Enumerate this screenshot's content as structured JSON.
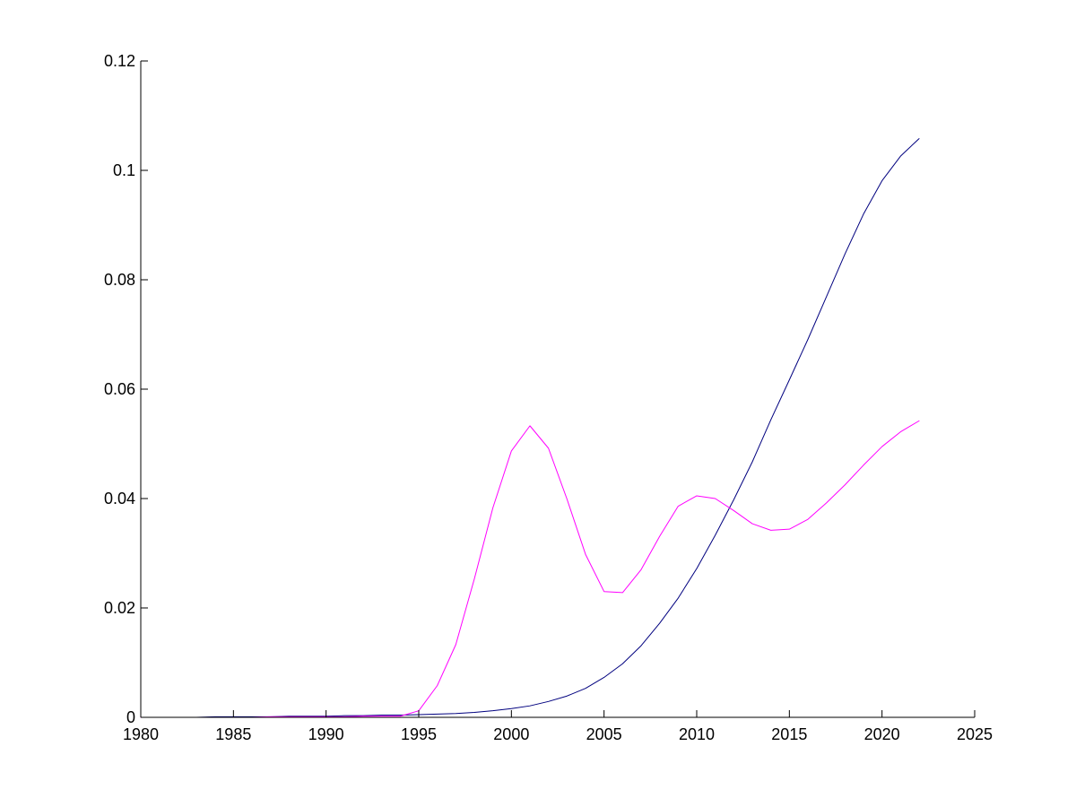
{
  "chart_data": {
    "type": "line",
    "title": "",
    "xlabel": "",
    "ylabel": "",
    "xlim": [
      1980,
      2025
    ],
    "ylim": [
      0,
      0.12
    ],
    "x_ticks": [
      1980,
      1985,
      1990,
      1995,
      2000,
      2005,
      2010,
      2015,
      2020,
      2025
    ],
    "x_tick_labels": [
      "1980",
      "1985",
      "1990",
      "1995",
      "2000",
      "2005",
      "2010",
      "2015",
      "2020",
      "2025"
    ],
    "y_ticks": [
      0,
      0.02,
      0.04,
      0.06,
      0.08,
      0.1,
      0.12
    ],
    "y_tick_labels": [
      "0",
      "0.02",
      "0.04",
      "0.06",
      "0.08",
      "0.1",
      "0.12"
    ],
    "grid": false,
    "legend": "none",
    "x": [
      1980,
      1981,
      1982,
      1983,
      1984,
      1985,
      1986,
      1987,
      1988,
      1989,
      1990,
      1991,
      1992,
      1993,
      1994,
      1995,
      1996,
      1997,
      1998,
      1999,
      2000,
      2001,
      2002,
      2003,
      2004,
      2005,
      2006,
      2007,
      2008,
      2009,
      2010,
      2011,
      2012,
      2013,
      2014,
      2015,
      2016,
      2017,
      2018,
      2019,
      2020,
      2021,
      2022
    ],
    "series": [
      {
        "color": "#00007f",
        "values": [
          0,
          0,
          0,
          0,
          0.0001,
          0.0001,
          0.0001,
          0.0001,
          0.0002,
          0.0002,
          0.0002,
          0.0003,
          0.0003,
          0.0004,
          0.0004,
          0.0005,
          0.0006,
          0.0007,
          0.0009,
          0.0012,
          0.0016,
          0.0021,
          0.0029,
          0.0039,
          0.0053,
          0.0073,
          0.0098,
          0.0131,
          0.0172,
          0.0218,
          0.0272,
          0.0333,
          0.0398,
          0.0467,
          0.0544,
          0.0617,
          0.0691,
          0.0769,
          0.0847,
          0.092,
          0.0981,
          0.1026,
          0.1058
        ]
      },
      {
        "color": "#ff00ff",
        "values": [
          0,
          0,
          0,
          0,
          0,
          0,
          0,
          0.0001,
          0.0001,
          0.0001,
          0.0001,
          0.0001,
          0.0002,
          0.0002,
          0.0002,
          0.0012,
          0.0058,
          0.0133,
          0.0253,
          0.0383,
          0.0487,
          0.0533,
          0.0492,
          0.0399,
          0.0298,
          0.023,
          0.0228,
          0.027,
          0.0331,
          0.0386,
          0.0405,
          0.04,
          0.0378,
          0.0354,
          0.0342,
          0.0344,
          0.0362,
          0.0392,
          0.0425,
          0.0461,
          0.0495,
          0.0522,
          0.0542
        ]
      }
    ]
  }
}
